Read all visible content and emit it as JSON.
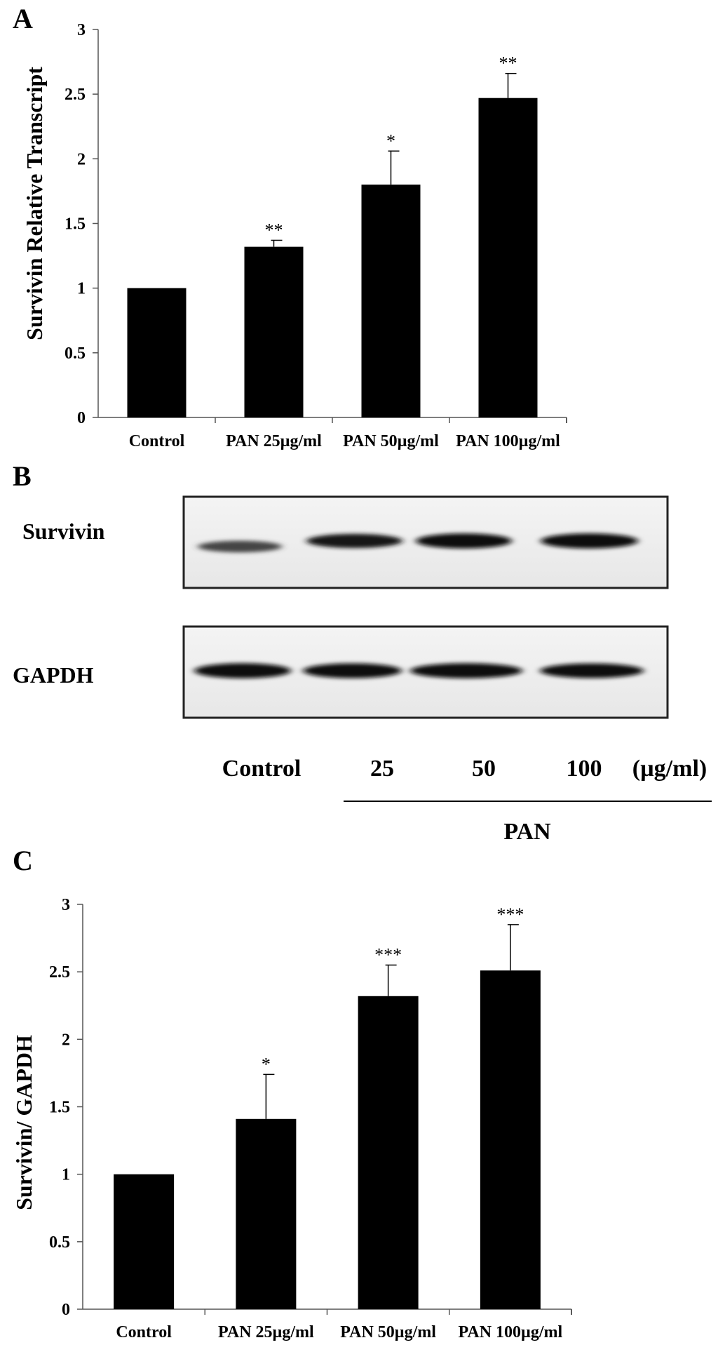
{
  "chart_data": [
    {
      "panel": "A",
      "type": "bar",
      "ylabel": "Survivin Relative Transcript",
      "categories": [
        "Control",
        "PAN 25µg/ml",
        "PAN 50µg/ml",
        "PAN 100µg/ml"
      ],
      "values": [
        1.0,
        1.32,
        1.8,
        2.47
      ],
      "error": [
        0,
        0.05,
        0.26,
        0.19
      ],
      "significance": [
        "",
        "**",
        "*",
        "**"
      ],
      "ylim": [
        0,
        3
      ],
      "yticks": [
        "0",
        "0.5",
        "1",
        "1.5",
        "2",
        "2.5",
        "3"
      ],
      "bar_color": "#000000"
    },
    {
      "panel": "C",
      "type": "bar",
      "ylabel": "Survivin/ GAPDH",
      "categories": [
        "Control",
        "PAN 25µg/ml",
        "PAN 50µg/ml",
        "PAN 100µg/ml"
      ],
      "values": [
        1.0,
        1.41,
        2.32,
        2.51
      ],
      "error": [
        0,
        0.33,
        0.23,
        0.34
      ],
      "significance": [
        "",
        "*",
        "***",
        "***"
      ],
      "ylim": [
        0,
        3
      ],
      "yticks": [
        "0",
        "0.5",
        "1",
        "1.5",
        "2",
        "2.5",
        "3"
      ],
      "bar_color": "#000000"
    }
  ],
  "blot": {
    "panel": "B",
    "rows": [
      {
        "label": "Survivin",
        "intensities": [
          0.55,
          0.85,
          0.95,
          0.95
        ]
      },
      {
        "label": "GAPDH",
        "intensities": [
          0.95,
          0.92,
          0.95,
          0.9
        ]
      }
    ],
    "lanes": [
      "Control",
      "25",
      "50",
      "100",
      "(µg/ml)"
    ],
    "group_label": "PAN"
  }
}
